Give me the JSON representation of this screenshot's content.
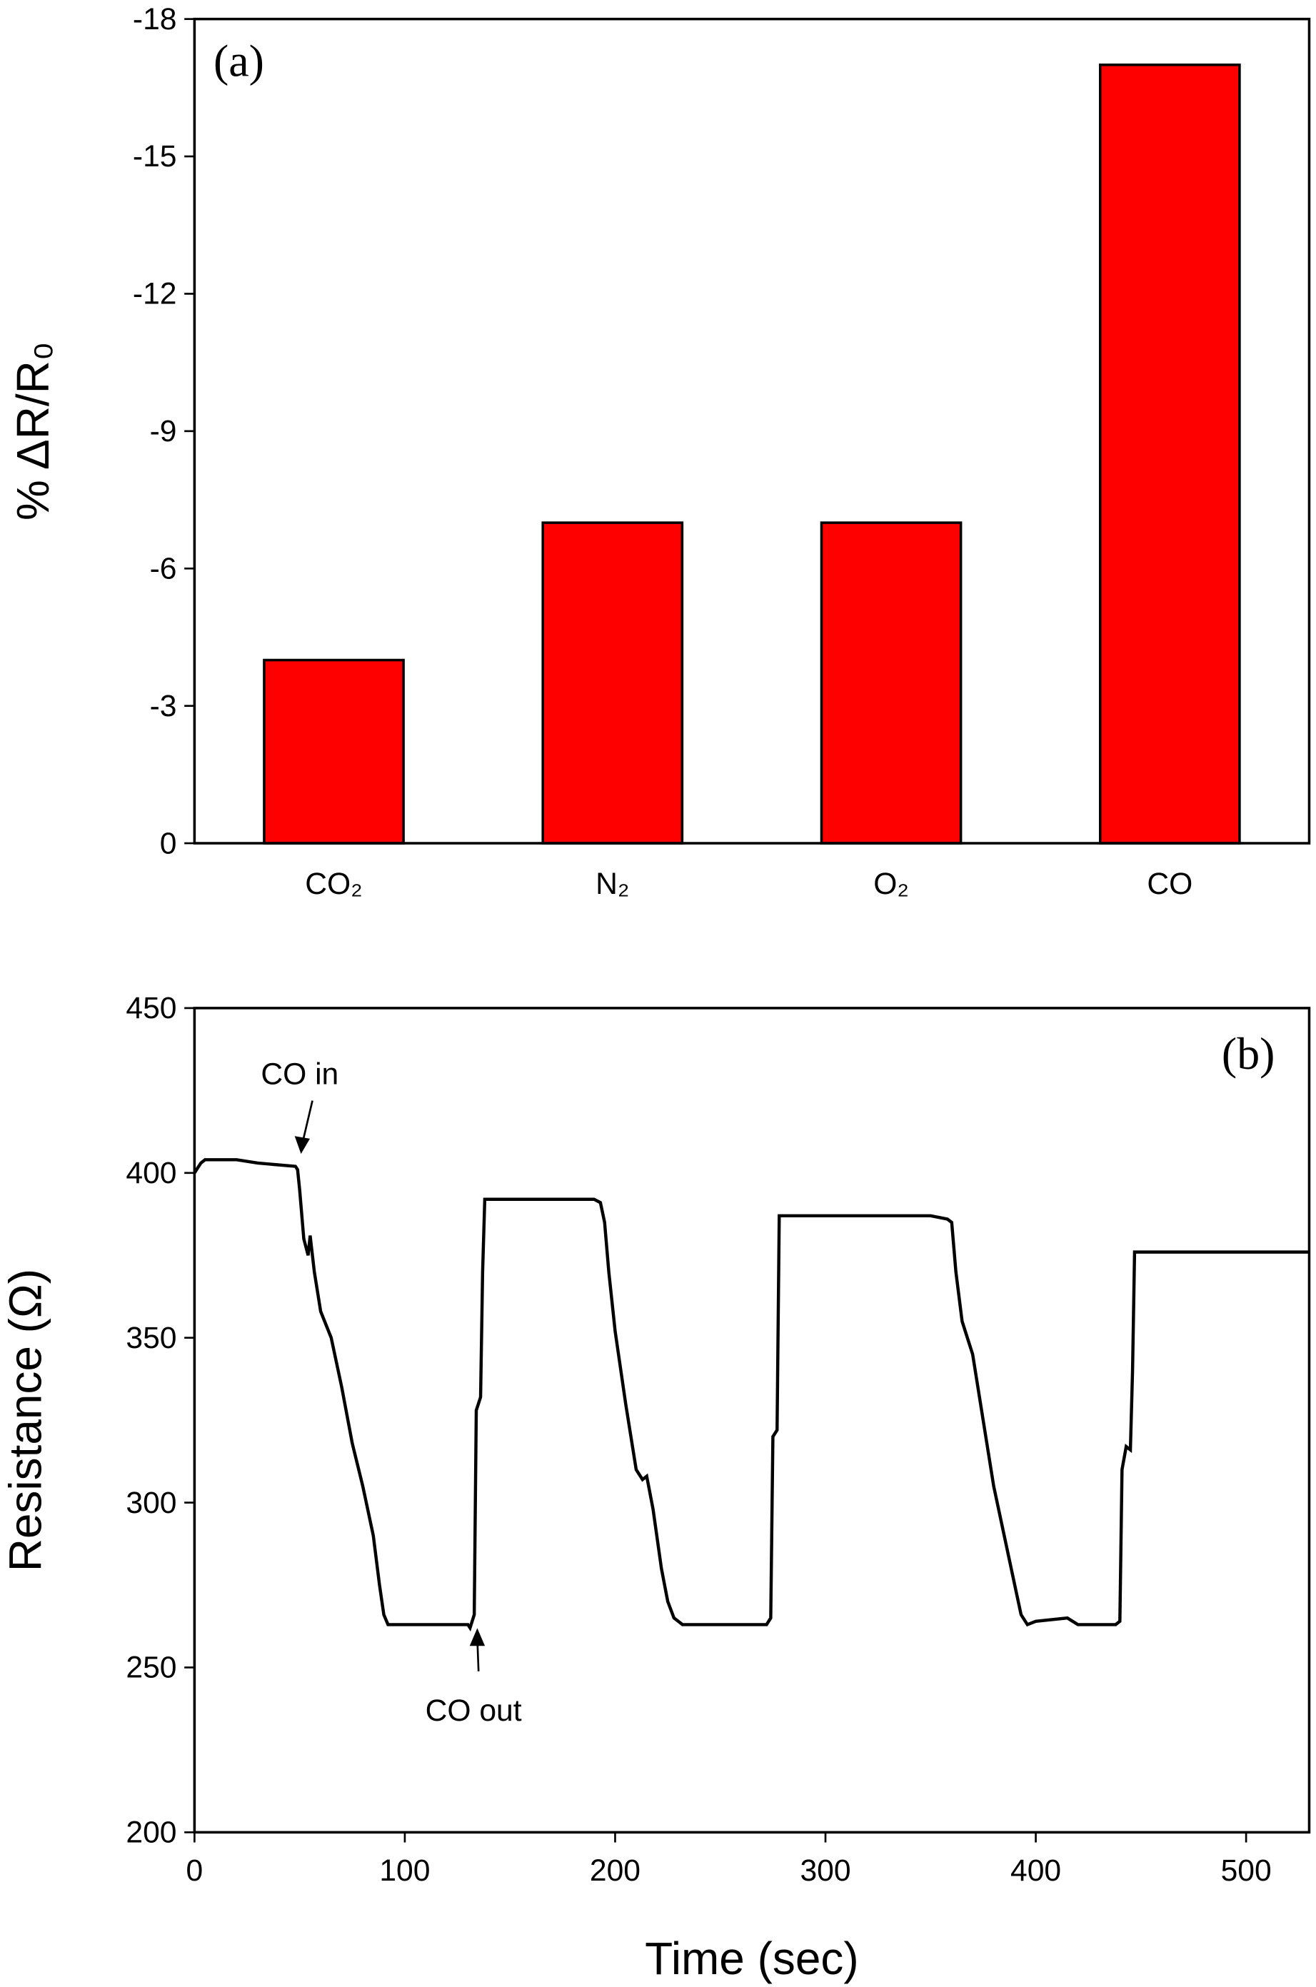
{
  "chart_data": [
    {
      "type": "bar",
      "label": "(a)",
      "y_label": "% ΔR/R₀",
      "categories": [
        "CO₂",
        "N₂",
        "O₂",
        "CO"
      ],
      "values": [
        -4,
        -7,
        -7,
        -17
      ],
      "color": "#ff0000",
      "ylim": [
        0,
        -18
      ],
      "yticks": [
        0,
        -3,
        -6,
        -9,
        -12,
        -15,
        -18
      ]
    },
    {
      "type": "line",
      "label": "(b)",
      "x_label": "Time (sec)",
      "y_label": "Resistance (Ω)",
      "annotations": [
        "CO in",
        "CO out"
      ],
      "color": "#000000",
      "xlim": [
        0,
        530
      ],
      "xticks": [
        0,
        100,
        200,
        300,
        400,
        500
      ],
      "ylim": [
        200,
        450
      ],
      "yticks": [
        200,
        250,
        300,
        350,
        400,
        450
      ],
      "x": [
        0,
        3,
        5,
        20,
        30,
        48,
        49,
        50,
        52,
        54,
        55,
        57,
        60,
        65,
        70,
        75,
        80,
        85,
        88,
        90,
        92,
        100,
        130,
        131,
        133,
        134,
        136,
        137,
        138,
        160,
        190,
        193,
        195,
        197,
        200,
        205,
        210,
        213,
        215,
        218,
        222,
        225,
        228,
        232,
        250,
        272,
        274,
        275,
        277,
        278,
        300,
        350,
        358,
        360,
        362,
        365,
        370,
        375,
        380,
        385,
        390,
        393,
        396,
        400,
        415,
        420,
        438,
        440,
        441,
        443,
        445,
        446,
        447,
        530
      ],
      "values": [
        400,
        403,
        404,
        404,
        403,
        402,
        401,
        395,
        380,
        375,
        381,
        370,
        358,
        350,
        335,
        318,
        305,
        290,
        275,
        266,
        263,
        263,
        263,
        262,
        266,
        328,
        332,
        370,
        392,
        392,
        392,
        391,
        385,
        370,
        352,
        330,
        310,
        307,
        308,
        298,
        280,
        270,
        265,
        263,
        263,
        263,
        265,
        320,
        322,
        387,
        387,
        387,
        386,
        385,
        370,
        355,
        345,
        325,
        305,
        290,
        275,
        266,
        263,
        264,
        265,
        263,
        263,
        264,
        310,
        317,
        316,
        340,
        376,
        376
      ]
    }
  ]
}
